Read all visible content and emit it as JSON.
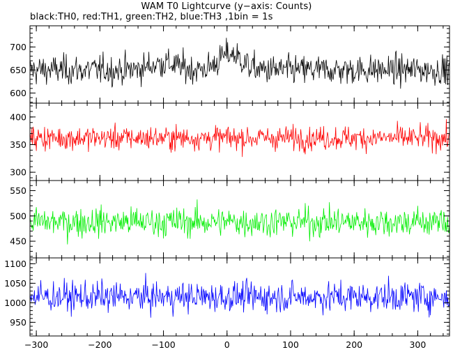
{
  "title": "WAM T0 Lightcurve (y−axis: Counts)",
  "subtitle": "black:TH0, red:TH1, green:TH2, blue:TH3 ,1bin = 1s",
  "chart_data": {
    "type": "line",
    "x_range": [
      -310,
      350
    ],
    "x_ticks": [
      -300,
      -200,
      -100,
      0,
      100,
      200,
      300
    ],
    "x_tick_labels": [
      "−300",
      "−200",
      "−100",
      "0",
      "100",
      "200",
      "300"
    ],
    "x_step": 1,
    "panels": [
      {
        "series": "TH0",
        "color": "#000000",
        "ylim": [
          578,
          746
        ],
        "y_ticks": [
          600,
          650,
          700
        ],
        "y_tick_labels": [
          "600",
          "650",
          "700"
        ],
        "level": 650,
        "noise": 25,
        "bumps": [
          {
            "x": 5,
            "amp": 35,
            "width": 25
          },
          {
            "x": -100,
            "amp": 15,
            "width": 30
          }
        ]
      },
      {
        "series": "TH1",
        "color": "#ff0000",
        "ylim": [
          285,
          425
        ],
        "y_ticks": [
          300,
          350,
          400
        ],
        "y_tick_labels": [
          "300",
          "350",
          "400"
        ],
        "level": 362,
        "noise": 17,
        "bumps": []
      },
      {
        "series": "TH2",
        "color": "#00ee00",
        "ylim": [
          417,
          570
        ],
        "y_ticks": [
          450,
          500,
          550
        ],
        "y_tick_labels": [
          "450",
          "500",
          "550"
        ],
        "level": 488,
        "noise": 23,
        "bumps": []
      },
      {
        "series": "TH3",
        "color": "#0000ff",
        "ylim": [
          915,
          1115
        ],
        "y_ticks": [
          950,
          1000,
          1050,
          1100
        ],
        "y_tick_labels": [
          "950",
          "1000",
          "1050",
          "1100"
        ],
        "level": 1015,
        "noise": 30,
        "bumps": []
      }
    ]
  }
}
